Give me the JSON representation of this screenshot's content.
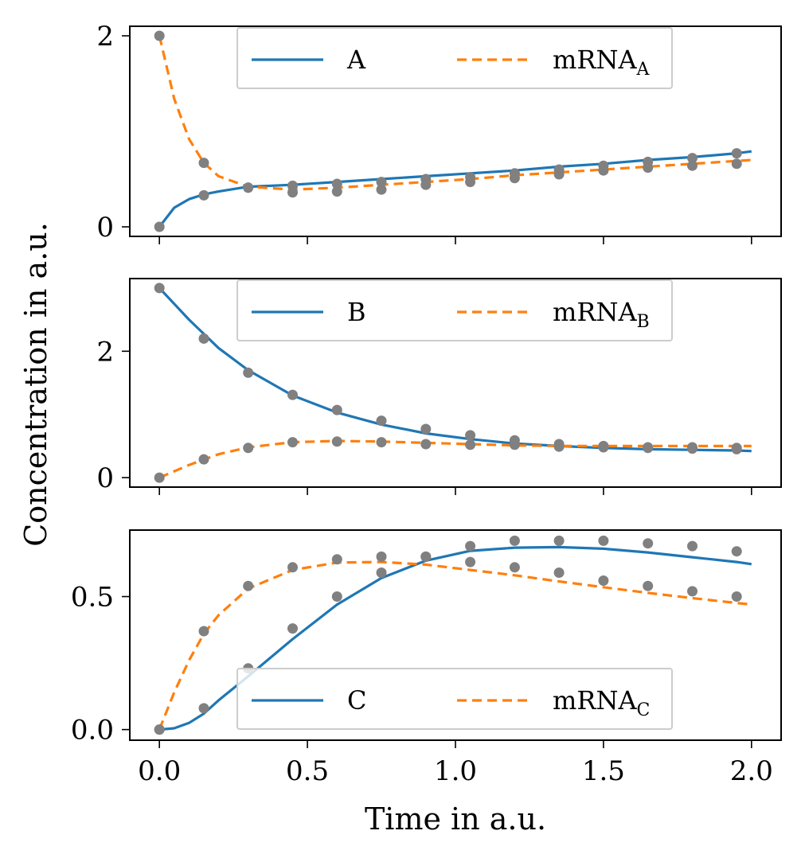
{
  "colors": {
    "solid": "#1f77b4",
    "dashed": "#ff7f0e",
    "points": "#808080"
  },
  "figure": {
    "xlabel": "Time in a.u.",
    "ylabel": "Concentration in a.u."
  },
  "chart_data": [
    {
      "type": "line",
      "xlim": [
        -0.1,
        2.1
      ],
      "ylim": [
        -0.1,
        2.1
      ],
      "xticks": [
        0.0,
        0.5,
        1.0,
        1.5,
        2.0
      ],
      "xtick_labels": [
        "",
        "",
        "",
        "",
        ""
      ],
      "yticks": [
        0,
        2
      ],
      "ytick_labels": [
        "0",
        "2"
      ],
      "legend": {
        "placement": "upper-center",
        "ncol": 2
      },
      "series": [
        {
          "name": "A",
          "style": "solid",
          "x": [
            0,
            0.05,
            0.1,
            0.15,
            0.2,
            0.3,
            0.45,
            0.6,
            0.75,
            0.9,
            1.05,
            1.2,
            1.35,
            1.5,
            1.65,
            1.8,
            1.95,
            2.0
          ],
          "y": [
            0,
            0.2,
            0.29,
            0.34,
            0.37,
            0.42,
            0.44,
            0.47,
            0.5,
            0.53,
            0.56,
            0.59,
            0.63,
            0.66,
            0.7,
            0.73,
            0.77,
            0.79
          ]
        },
        {
          "name": "mRNA",
          "sub": "A",
          "style": "dashed",
          "x": [
            0,
            0.05,
            0.1,
            0.15,
            0.2,
            0.3,
            0.45,
            0.6,
            0.75,
            0.9,
            1.05,
            1.2,
            1.35,
            1.5,
            1.65,
            1.8,
            1.95,
            2.0
          ],
          "y": [
            2.0,
            1.34,
            0.92,
            0.67,
            0.53,
            0.42,
            0.39,
            0.41,
            0.44,
            0.47,
            0.5,
            0.54,
            0.57,
            0.6,
            0.63,
            0.66,
            0.69,
            0.7
          ]
        }
      ],
      "points": {
        "x": [
          0,
          0,
          0.15,
          0.15,
          0.3,
          0.3,
          0.45,
          0.45,
          0.6,
          0.6,
          0.75,
          0.75,
          0.9,
          0.9,
          1.05,
          1.05,
          1.2,
          1.2,
          1.35,
          1.35,
          1.5,
          1.5,
          1.65,
          1.65,
          1.8,
          1.8,
          1.95,
          1.95
        ],
        "y": [
          2.0,
          0.0,
          0.67,
          0.33,
          0.41,
          0.41,
          0.43,
          0.36,
          0.45,
          0.37,
          0.47,
          0.39,
          0.5,
          0.44,
          0.52,
          0.47,
          0.56,
          0.51,
          0.6,
          0.55,
          0.64,
          0.59,
          0.68,
          0.62,
          0.72,
          0.64,
          0.77,
          0.66
        ]
      }
    },
    {
      "type": "line",
      "xlim": [
        -0.1,
        2.1
      ],
      "ylim": [
        -0.15,
        3.15
      ],
      "xticks": [
        0.0,
        0.5,
        1.0,
        1.5,
        2.0
      ],
      "xtick_labels": [
        "",
        "",
        "",
        "",
        ""
      ],
      "yticks": [
        0,
        2
      ],
      "ytick_labels": [
        "0",
        "2"
      ],
      "legend": {
        "placement": "upper-center",
        "ncol": 2
      },
      "series": [
        {
          "name": "B",
          "style": "solid",
          "x": [
            0,
            0.1,
            0.2,
            0.3,
            0.45,
            0.6,
            0.75,
            0.9,
            1.05,
            1.2,
            1.35,
            1.5,
            1.65,
            1.8,
            1.95,
            2.0
          ],
          "y": [
            3.0,
            2.5,
            2.05,
            1.7,
            1.3,
            1.03,
            0.84,
            0.7,
            0.61,
            0.54,
            0.5,
            0.47,
            0.45,
            0.44,
            0.43,
            0.42
          ]
        },
        {
          "name": "mRNA",
          "sub": "B",
          "style": "dashed",
          "x": [
            0,
            0.1,
            0.2,
            0.3,
            0.45,
            0.6,
            0.75,
            0.9,
            1.05,
            1.2,
            1.35,
            1.5,
            1.65,
            1.8,
            1.95,
            2.0
          ],
          "y": [
            0,
            0.2,
            0.37,
            0.48,
            0.56,
            0.58,
            0.57,
            0.55,
            0.53,
            0.51,
            0.5,
            0.5,
            0.5,
            0.5,
            0.5,
            0.5
          ]
        }
      ],
      "points": {
        "x": [
          0,
          0,
          0.15,
          0.15,
          0.3,
          0.3,
          0.45,
          0.45,
          0.6,
          0.6,
          0.75,
          0.75,
          0.9,
          0.9,
          1.05,
          1.05,
          1.2,
          1.2,
          1.35,
          1.35,
          1.5,
          1.5,
          1.65,
          1.65,
          1.8,
          1.8,
          1.95,
          1.95
        ],
        "y": [
          3.0,
          0.0,
          2.2,
          0.29,
          1.66,
          0.47,
          1.31,
          0.56,
          1.07,
          0.57,
          0.9,
          0.56,
          0.77,
          0.53,
          0.67,
          0.52,
          0.59,
          0.52,
          0.53,
          0.49,
          0.5,
          0.48,
          0.48,
          0.47,
          0.48,
          0.46,
          0.47,
          0.45
        ]
      }
    },
    {
      "type": "line",
      "xlim": [
        -0.1,
        2.1
      ],
      "ylim": [
        -0.04,
        0.75
      ],
      "xticks": [
        0.0,
        0.5,
        1.0,
        1.5,
        2.0
      ],
      "xtick_labels": [
        "0.0",
        "0.5",
        "1.0",
        "1.5",
        "2.0"
      ],
      "yticks": [
        0.0,
        0.5
      ],
      "ytick_labels": [
        "0.0",
        "0.5"
      ],
      "legend": {
        "placement": "lower-center",
        "ncol": 2
      },
      "series": [
        {
          "name": "C",
          "style": "solid",
          "x": [
            0,
            0.05,
            0.1,
            0.15,
            0.2,
            0.3,
            0.45,
            0.6,
            0.75,
            0.9,
            1.05,
            1.2,
            1.35,
            1.5,
            1.65,
            1.8,
            1.95,
            2.0
          ],
          "y": [
            0,
            0.005,
            0.025,
            0.06,
            0.11,
            0.2,
            0.34,
            0.47,
            0.57,
            0.635,
            0.672,
            0.684,
            0.686,
            0.68,
            0.666,
            0.648,
            0.63,
            0.622
          ]
        },
        {
          "name": "mRNA",
          "sub": "C",
          "style": "dashed",
          "x": [
            0,
            0.05,
            0.1,
            0.15,
            0.2,
            0.3,
            0.45,
            0.6,
            0.75,
            0.9,
            1.05,
            1.2,
            1.35,
            1.5,
            1.65,
            1.8,
            1.95,
            2.0
          ],
          "y": [
            0,
            0.14,
            0.26,
            0.36,
            0.43,
            0.53,
            0.6,
            0.628,
            0.63,
            0.62,
            0.6,
            0.58,
            0.557,
            0.535,
            0.514,
            0.494,
            0.476,
            0.47
          ]
        }
      ],
      "points": {
        "x": [
          0,
          0,
          0.15,
          0.15,
          0.3,
          0.3,
          0.45,
          0.45,
          0.6,
          0.6,
          0.75,
          0.75,
          0.9,
          0.9,
          1.05,
          1.05,
          1.2,
          1.2,
          1.35,
          1.35,
          1.5,
          1.5,
          1.65,
          1.65,
          1.8,
          1.8,
          1.95,
          1.95
        ],
        "y": [
          0.0,
          0.0,
          0.37,
          0.08,
          0.54,
          0.23,
          0.61,
          0.38,
          0.64,
          0.5,
          0.65,
          0.59,
          0.65,
          0.65,
          0.63,
          0.69,
          0.61,
          0.71,
          0.59,
          0.71,
          0.56,
          0.71,
          0.54,
          0.7,
          0.52,
          0.69,
          0.5,
          0.67
        ]
      }
    }
  ]
}
